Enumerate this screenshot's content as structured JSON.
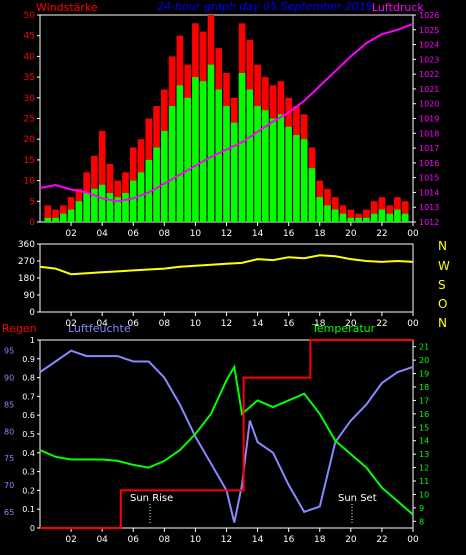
{
  "header": {
    "left_label": "Windstärke",
    "title": "24-hour graph day  05.September 2019",
    "right_label": "Luftdruck"
  },
  "colors": {
    "wind_gust": "#ff0000",
    "wind_avg": "#00ff00",
    "pressure": "#ff00ff",
    "direction": "#ffff00",
    "humidity": "#8888ff",
    "temperature": "#00ff00",
    "rain": "#ff0000",
    "axes": "#ffffff",
    "left_labels": "#ff0000",
    "pressure_labels": "#ff00ff",
    "title": "#0000ff"
  },
  "compass": [
    "N",
    "W",
    "S",
    "O",
    "N"
  ],
  "bottom_header": {
    "rain_label": "Regen",
    "humidity_label": "Luftfeuchte",
    "temperature_label": "Temperatur"
  },
  "annotations": {
    "sunrise": "Sun Rise",
    "sunset": "Sun Set"
  },
  "chart_data": [
    {
      "type": "bar",
      "x_ticks": [
        "02",
        "04",
        "06",
        "08",
        "10",
        "12",
        "14",
        "16",
        "18",
        "20",
        "22",
        "00"
      ],
      "xlim": [
        0,
        24
      ],
      "y_left_ticks": [
        0,
        5,
        10,
        15,
        20,
        25,
        30,
        35,
        40,
        45,
        50
      ],
      "ylim_left": [
        0,
        50
      ],
      "y_right_ticks": [
        1012,
        1013,
        1014,
        1015,
        1016,
        1017,
        1018,
        1019,
        1020,
        1021,
        1022,
        1023,
        1024,
        1025,
        1026
      ],
      "ylim_right": [
        1012,
        1026
      ],
      "wind_gust": {
        "x": [
          0.5,
          1.0,
          1.5,
          2.0,
          2.5,
          3.0,
          3.5,
          4.0,
          4.5,
          5.0,
          5.5,
          6.0,
          6.5,
          7.0,
          7.5,
          8.0,
          8.5,
          9.0,
          9.5,
          10.0,
          10.5,
          11.0,
          11.5,
          12.0,
          12.5,
          13.0,
          13.5,
          14.0,
          14.5,
          15.0,
          15.5,
          16.0,
          16.5,
          17.0,
          17.5,
          18.0,
          18.5,
          19.0,
          19.5,
          20.0,
          20.5,
          21.0,
          21.5,
          22.0,
          22.5,
          23.0,
          23.5
        ],
        "values": [
          4,
          3,
          4,
          6,
          8,
          12,
          16,
          22,
          14,
          10,
          12,
          18,
          20,
          25,
          28,
          32,
          40,
          45,
          38,
          48,
          46,
          50,
          42,
          36,
          30,
          48,
          44,
          38,
          35,
          33,
          34,
          30,
          28,
          26,
          18,
          10,
          8,
          6,
          4,
          3,
          2,
          3,
          5,
          6,
          4,
          6,
          5
        ]
      },
      "wind_avg": {
        "x": [
          0.5,
          1.0,
          1.5,
          2.0,
          2.5,
          3.0,
          3.5,
          4.0,
          4.5,
          5.0,
          5.5,
          6.0,
          6.5,
          7.0,
          7.5,
          8.0,
          8.5,
          9.0,
          9.5,
          10.0,
          10.5,
          11.0,
          11.5,
          12.0,
          12.5,
          13.0,
          13.5,
          14.0,
          14.5,
          15.0,
          15.5,
          16.0,
          16.5,
          17.0,
          17.5,
          18.0,
          18.5,
          19.0,
          19.5,
          20.0,
          20.5,
          21.0,
          21.5,
          22.0,
          22.5,
          23.0,
          23.5
        ],
        "values": [
          1,
          1,
          2,
          3,
          5,
          7,
          8,
          9,
          7,
          6,
          7,
          10,
          12,
          15,
          18,
          22,
          28,
          33,
          30,
          35,
          34,
          38,
          32,
          28,
          24,
          36,
          32,
          28,
          27,
          25,
          26,
          23,
          21,
          20,
          13,
          6,
          4,
          3,
          2,
          1,
          1,
          1,
          2,
          3,
          2,
          3,
          2
        ]
      },
      "pressure": {
        "x": [
          0,
          1,
          2,
          3,
          4,
          5,
          6,
          7,
          8,
          9,
          10,
          11,
          12,
          13,
          14,
          15,
          16,
          17,
          18,
          19,
          20,
          21,
          22,
          23,
          24
        ],
        "values": [
          1014.3,
          1014.5,
          1014.2,
          1014.0,
          1013.6,
          1013.4,
          1013.6,
          1014.0,
          1014.6,
          1015.2,
          1015.8,
          1016.4,
          1016.9,
          1017.4,
          1018.1,
          1018.8,
          1019.4,
          1020.2,
          1021.2,
          1022.2,
          1023.2,
          1024.1,
          1024.7,
          1025.0,
          1025.4
        ]
      }
    },
    {
      "type": "line",
      "x_ticks": [
        "02",
        "04",
        "06",
        "08",
        "10",
        "12",
        "14",
        "16",
        "18",
        "20",
        "22",
        "00"
      ],
      "xlim": [
        0,
        24
      ],
      "y_ticks": [
        0,
        90,
        180,
        270,
        360
      ],
      "ylim": [
        0,
        360
      ],
      "wind_direction": {
        "x": [
          0,
          1,
          2,
          3,
          4,
          5,
          6,
          7,
          8,
          9,
          10,
          11,
          12,
          13,
          14,
          15,
          16,
          17,
          18,
          19,
          20,
          21,
          22,
          23,
          24
        ],
        "values": [
          240,
          230,
          200,
          205,
          210,
          215,
          220,
          225,
          230,
          240,
          245,
          250,
          255,
          260,
          280,
          275,
          290,
          285,
          300,
          295,
          280,
          270,
          265,
          270,
          265
        ]
      }
    },
    {
      "type": "line",
      "x_ticks": [
        "02",
        "04",
        "06",
        "08",
        "10",
        "12",
        "14",
        "16",
        "18",
        "20",
        "22",
        "00"
      ],
      "xlim": [
        0,
        24
      ],
      "y_rain_ticks": [
        0,
        0.1,
        0.2,
        0.3,
        0.4,
        0.5,
        0.6,
        0.7,
        0.8,
        0.9,
        1
      ],
      "ylim_rain": [
        0,
        1
      ],
      "y_humidity_ticks": [
        65,
        70,
        75,
        80,
        85,
        90,
        95
      ],
      "ylim_humidity": [
        62,
        97
      ],
      "y_temperature_ticks": [
        8,
        9,
        10,
        11,
        12,
        13,
        14,
        15,
        16,
        17,
        18,
        19,
        20,
        21
      ],
      "ylim_temperature": [
        7.5,
        21.5
      ],
      "rain": {
        "x": [
          0,
          5.2,
          5.2,
          13.1,
          13.1,
          17.4,
          17.4,
          24
        ],
        "values": [
          0,
          0,
          0.2,
          0.2,
          0.8,
          0.8,
          1,
          1
        ]
      },
      "humidity": {
        "x": [
          0,
          1,
          2,
          3,
          4,
          5,
          6,
          7,
          8,
          9,
          10,
          11,
          12,
          12.5,
          13,
          13.5,
          14,
          15,
          16,
          17,
          18,
          19,
          20,
          21,
          22,
          23,
          24
        ],
        "values": [
          91,
          93,
          95,
          94,
          94,
          94,
          93,
          93,
          90,
          85,
          79,
          74,
          69,
          63,
          70,
          82,
          78,
          76,
          70,
          65,
          66,
          78,
          82,
          85,
          89,
          91,
          92
        ]
      },
      "temperature": {
        "x": [
          0,
          1,
          2,
          3,
          4,
          5,
          6,
          7,
          8,
          9,
          10,
          11,
          12,
          12.5,
          13,
          14,
          15,
          16,
          17,
          18,
          19,
          20,
          21,
          22,
          23,
          24
        ],
        "values": [
          13.3,
          12.8,
          12.6,
          12.6,
          12.6,
          12.5,
          12.2,
          12.0,
          12.5,
          13.3,
          14.5,
          16.0,
          18.5,
          19.5,
          16.0,
          17.0,
          16.5,
          17.0,
          17.5,
          16.0,
          14.0,
          13.0,
          12.0,
          10.5,
          9.5,
          8.5
        ]
      }
    }
  ]
}
